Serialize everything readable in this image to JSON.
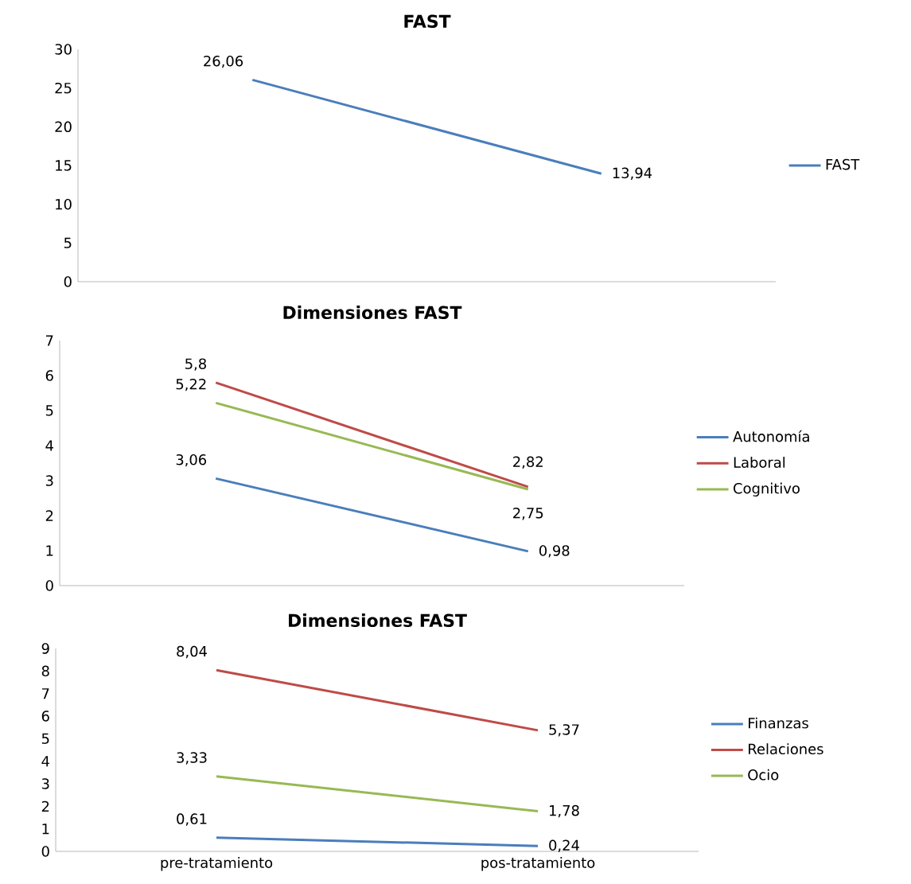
{
  "chart_data": [
    {
      "type": "line",
      "title": "FAST",
      "categories": [
        null,
        null
      ],
      "ylim": [
        0,
        30
      ],
      "yticks": [
        0,
        5,
        10,
        15,
        20,
        25,
        30
      ],
      "tick_labels": "y",
      "legend": "right",
      "series": [
        {
          "name": "FAST",
          "color": "#4a7ebb",
          "values": [
            26.06,
            13.94
          ],
          "value_labels": [
            "26,06",
            "13,94"
          ]
        }
      ]
    },
    {
      "type": "line",
      "title": "Dimensiones FAST",
      "categories": [
        null,
        null
      ],
      "ylim": [
        0,
        7
      ],
      "yticks": [
        0,
        1,
        2,
        3,
        4,
        5,
        6,
        7
      ],
      "tick_labels": "y",
      "legend": "right",
      "series": [
        {
          "name": "Autonomía",
          "color": "#4a7ebb",
          "values": [
            3.06,
            0.98
          ],
          "value_labels": [
            "3,06",
            "0,98"
          ]
        },
        {
          "name": "Laboral",
          "color": "#be4b48",
          "values": [
            5.8,
            2.82
          ],
          "value_labels": [
            "5,8",
            "2,82"
          ]
        },
        {
          "name": "Cognitivo",
          "color": "#98b954",
          "values": [
            5.22,
            2.75
          ],
          "value_labels": [
            "5,22",
            "2,75"
          ]
        }
      ]
    },
    {
      "type": "line",
      "title": "Dimensiones FAST",
      "categories": [
        "pre-tratamiento",
        "pos-tratamiento"
      ],
      "ylim": [
        0,
        9
      ],
      "yticks": [
        0,
        1,
        2,
        3,
        4,
        5,
        6,
        7,
        8,
        9
      ],
      "legend": "right",
      "series": [
        {
          "name": "Finanzas",
          "color": "#4a7ebb",
          "values": [
            0.61,
            0.24
          ],
          "value_labels": [
            "0,61",
            "0,24"
          ]
        },
        {
          "name": "Relaciones",
          "color": "#be4b48",
          "values": [
            8.04,
            5.37
          ],
          "value_labels": [
            "8,04",
            "5,37"
          ]
        },
        {
          "name": "Ocio",
          "color": "#98b954",
          "values": [
            3.33,
            1.78
          ],
          "value_labels": [
            "3,33",
            "1,78"
          ]
        }
      ]
    }
  ]
}
